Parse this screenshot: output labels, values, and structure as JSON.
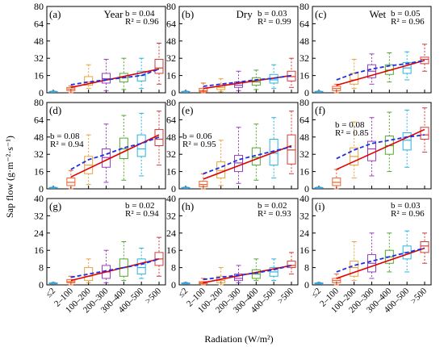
{
  "figure": {
    "ylabel": "Sap flow (g·m⁻²·s⁻¹)",
    "xlabel": "Radiation (W/m²)"
  },
  "chart_data": [
    {
      "type": "box",
      "panel": "(a)",
      "title": "Year",
      "b_text": "b = 0.04",
      "r2_text": "R² = 0.96",
      "ylim": [
        0,
        80
      ],
      "yticks": [
        0,
        16,
        32,
        48,
        64,
        80
      ],
      "categories": [
        "≤2",
        "2–100",
        "100–200",
        "200–300",
        "300–400",
        "400–500",
        ">500"
      ],
      "boxes": [
        [
          0.5,
          0.8,
          1,
          1.3,
          1.6
        ],
        [
          0,
          2,
          3.5,
          5,
          6.5
        ],
        [
          4,
          7,
          10,
          15,
          26
        ],
        [
          2,
          9,
          13,
          18,
          31
        ],
        [
          3,
          10,
          14,
          18,
          32
        ],
        [
          4,
          11,
          16,
          20,
          32
        ],
        [
          8,
          18,
          23,
          31,
          46
        ]
      ],
      "fit_solid": [
        5,
        22
      ],
      "fit_dashed": [
        6,
        7.5,
        10,
        12,
        14,
        16,
        22
      ]
    },
    {
      "type": "box",
      "panel": "(b)",
      "title": "Dry",
      "b_text": "b = 0.03",
      "r2_text": "R² = 0.99",
      "ylim": [
        0,
        80
      ],
      "yticks": [
        0,
        16,
        32,
        48,
        64,
        80
      ],
      "categories": [
        "≤2",
        "2–100",
        "100–200",
        "200–300",
        "300–400",
        "400–500",
        ">500"
      ],
      "boxes": [
        [
          0.5,
          0.8,
          1,
          1.3,
          1.6
        ],
        [
          0,
          1,
          2,
          4,
          9
        ],
        [
          1,
          3,
          5,
          8,
          13
        ],
        [
          2,
          5,
          7,
          10,
          20
        ],
        [
          3,
          7,
          10,
          14,
          21
        ],
        [
          4,
          9,
          12,
          17,
          26
        ],
        [
          5,
          11,
          15,
          20,
          32
        ]
      ],
      "fit_solid": [
        4,
        16
      ],
      "fit_dashed": [
        4.5,
        6,
        8,
        10,
        12,
        13.5,
        16
      ]
    },
    {
      "type": "box",
      "panel": "(c)",
      "title": "Wet",
      "b_text": "b = 0.05",
      "r2_text": "R² = 0.96",
      "ylim": [
        0,
        80
      ],
      "yticks": [
        0,
        16,
        32,
        48,
        64,
        80
      ],
      "categories": [
        "≤2",
        "2–100",
        "100–200",
        "200–300",
        "300–400",
        "400–500",
        ">500"
      ],
      "boxes": [
        [
          0.5,
          0.8,
          1,
          1.3,
          1.6
        ],
        [
          0,
          2,
          4,
          6,
          8
        ],
        [
          4,
          8,
          12,
          18,
          31
        ],
        [
          8,
          14,
          20,
          26,
          36
        ],
        [
          10,
          17,
          21,
          26,
          37
        ],
        [
          12,
          18,
          23,
          28,
          38
        ],
        [
          20,
          27,
          31,
          33,
          45
        ]
      ],
      "fit_solid": [
        7,
        30
      ],
      "fit_dashed": [
        7,
        12,
        18,
        22,
        25,
        27,
        30
      ]
    },
    {
      "type": "box",
      "panel": "(d)",
      "title": "",
      "b_text": "b = 0.08",
      "r2_text": "R² = 0.94",
      "ylim": [
        0,
        80
      ],
      "yticks": [
        0,
        16,
        32,
        48,
        64,
        80
      ],
      "categories": [
        "≤2",
        "2–100",
        "100–200",
        "200–300",
        "300–400",
        "400–500",
        ">500"
      ],
      "boxes": [
        [
          0.5,
          0.8,
          1,
          1.3,
          1.6
        ],
        [
          0,
          3,
          6,
          10,
          17
        ],
        [
          4,
          14,
          22,
          30,
          50
        ],
        [
          6,
          20,
          29,
          37,
          60
        ],
        [
          8,
          28,
          37,
          47,
          68
        ],
        [
          12,
          30,
          37,
          50,
          70
        ],
        [
          22,
          40,
          46,
          55,
          72
        ]
      ],
      "fit_solid": [
        11,
        50
      ],
      "fit_dashed": [
        11,
        18,
        27,
        32,
        38,
        42,
        48
      ]
    },
    {
      "type": "box",
      "panel": "(e)",
      "title": "",
      "b_text": "b = 0.06",
      "r2_text": "R² = 0.95",
      "ylim": [
        0,
        80
      ],
      "yticks": [
        0,
        16,
        32,
        48,
        64,
        80
      ],
      "categories": [
        "≤2",
        "2–100",
        "100–200",
        "200–300",
        "300–400",
        "400–500",
        ">500"
      ],
      "boxes": [
        [
          0.5,
          0.8,
          1,
          1.3,
          1.6
        ],
        [
          0,
          2,
          4,
          7,
          14
        ],
        [
          3,
          10,
          17,
          25,
          45
        ],
        [
          5,
          16,
          24,
          31,
          57
        ],
        [
          8,
          22,
          29,
          38,
          60
        ],
        [
          10,
          22,
          33,
          46,
          66
        ],
        [
          14,
          23,
          36,
          50,
          72
        ]
      ],
      "fit_solid": [
        9,
        40
      ],
      "fit_dashed": [
        9,
        14,
        20,
        27,
        31,
        35,
        39
      ]
    },
    {
      "type": "box",
      "panel": "(f)",
      "title": "",
      "b_text": "b = 0.08",
      "r2_text": "R² = 0.85",
      "ylim": [
        0,
        80
      ],
      "yticks": [
        0,
        16,
        32,
        48,
        64,
        80
      ],
      "categories": [
        "≤2",
        "2–100",
        "100–200",
        "200–300",
        "300–400",
        "400–500",
        ">500"
      ],
      "boxes": [
        [
          0.5,
          0.8,
          1,
          1.3,
          1.6
        ],
        [
          0,
          3,
          6,
          10,
          18
        ],
        [
          10,
          22,
          30,
          38,
          62
        ],
        [
          12,
          26,
          37,
          44,
          66
        ],
        [
          16,
          32,
          40,
          49,
          71
        ],
        [
          20,
          36,
          45,
          52,
          73
        ],
        [
          34,
          46,
          50,
          57,
          75
        ]
      ],
      "fit_solid": [
        18,
        55
      ],
      "fit_dashed": [
        11,
        28,
        36,
        42,
        45,
        48,
        50
      ]
    },
    {
      "type": "box",
      "panel": "(g)",
      "title": "",
      "b_text": "b = 0.02",
      "r2_text": "R² = 0.94",
      "ylim": [
        0,
        40
      ],
      "yticks": [
        0,
        8,
        16,
        24,
        32,
        40
      ],
      "categories": [
        "≤2",
        "2–100",
        "100–200",
        "200–300",
        "300–400",
        "400–500",
        ">500"
      ],
      "boxes": [
        [
          0.3,
          0.5,
          0.7,
          0.9,
          1.1
        ],
        [
          0,
          1,
          1.5,
          2.5,
          4
        ],
        [
          1,
          2,
          4,
          8,
          12
        ],
        [
          1,
          3,
          6,
          9,
          16
        ],
        [
          2,
          4,
          8,
          12,
          20
        ],
        [
          3,
          5,
          8,
          12,
          17
        ],
        [
          4,
          9,
          12,
          15,
          22
        ]
      ],
      "fit_solid": [
        2,
        12
      ],
      "fit_dashed": [
        2,
        3.5,
        5,
        6.5,
        8,
        9.5,
        12
      ]
    },
    {
      "type": "box",
      "panel": "(h)",
      "title": "",
      "b_text": "b = 0.02",
      "r2_text": "R² = 0.93",
      "ylim": [
        0,
        40
      ],
      "yticks": [
        0,
        8,
        16,
        24,
        32,
        40
      ],
      "categories": [
        "≤2",
        "2–100",
        "100–200",
        "200–300",
        "300–400",
        "400–500",
        ">500"
      ],
      "boxes": [
        [
          0.3,
          0.5,
          0.7,
          0.9,
          1.1
        ],
        [
          0,
          0.5,
          1,
          1.5,
          3
        ],
        [
          0,
          1,
          2,
          4,
          8
        ],
        [
          1,
          2,
          3,
          5,
          9
        ],
        [
          2,
          3,
          5,
          7,
          12
        ],
        [
          2,
          4,
          6,
          8,
          12
        ],
        [
          5,
          8,
          9,
          11,
          15
        ]
      ],
      "fit_solid": [
        1,
        9
      ],
      "fit_dashed": [
        1,
        2.5,
        3.5,
        4.5,
        5.5,
        7,
        9
      ]
    },
    {
      "type": "box",
      "panel": "(i)",
      "title": "",
      "b_text": "b = 0.03",
      "r2_text": "R² = 0.96",
      "ylim": [
        0,
        40
      ],
      "yticks": [
        0,
        8,
        16,
        24,
        32,
        40
      ],
      "categories": [
        "≤2",
        "2–100",
        "100–200",
        "200–300",
        "300–400",
        "400–500",
        ">500"
      ],
      "boxes": [
        [
          0.3,
          0.5,
          0.7,
          0.9,
          1.1
        ],
        [
          0,
          1,
          2,
          3,
          5
        ],
        [
          2,
          4,
          8,
          11,
          20
        ],
        [
          3,
          6,
          10,
          14,
          24
        ],
        [
          6,
          10,
          13,
          16,
          24
        ],
        [
          6,
          12,
          15,
          18,
          25
        ],
        [
          10,
          15,
          18,
          20,
          24
        ]
      ],
      "fit_solid": [
        3,
        17
      ],
      "fit_dashed": [
        3,
        6,
        9,
        11,
        13,
        15,
        17
      ]
    }
  ],
  "colors": {
    "boxes": [
      "#3da5d9",
      "#f0602a",
      "#e8a33d",
      "#9a3fc1",
      "#55a82f",
      "#2ab3e0",
      "#d63b3b"
    ],
    "fit_solid": "#e00000",
    "fit_dashed": "#1f2fe6"
  }
}
